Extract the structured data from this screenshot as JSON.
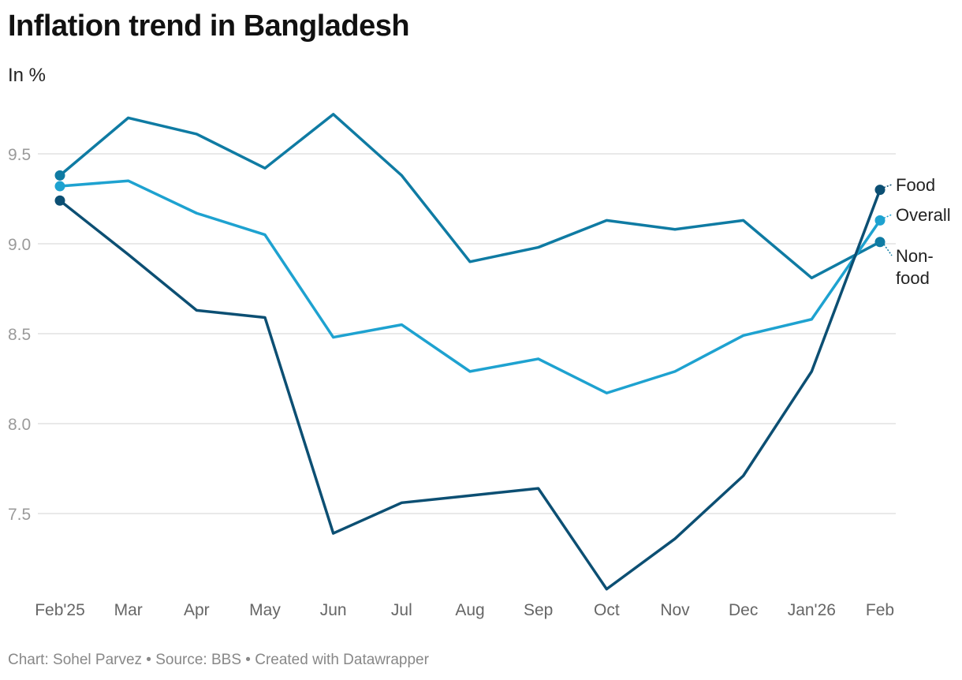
{
  "chart_data": {
    "type": "line",
    "title": "Inflation trend in Bangladesh",
    "subtitle": "In %",
    "xlabel": "",
    "ylabel": "In %",
    "categories": [
      "Feb'25",
      "Mar",
      "Apr",
      "May",
      "Jun",
      "Jul",
      "Aug",
      "Sep",
      "Oct",
      "Nov",
      "Dec",
      "Jan'26",
      "Feb"
    ],
    "yticks": [
      7.5,
      8.0,
      8.5,
      9.0,
      9.5
    ],
    "ytick_labels": [
      "7.5",
      "8.0",
      "8.5",
      "9.0",
      "9.5"
    ],
    "ylim": [
      7.0,
      9.8
    ],
    "grid": true,
    "legend": "inline-right",
    "series": [
      {
        "name": "Non-food",
        "label_lines": [
          "Non-",
          "food"
        ],
        "color": "#0f7ba3",
        "values": [
          9.38,
          9.7,
          9.61,
          9.42,
          9.72,
          9.38,
          8.9,
          8.98,
          9.13,
          9.08,
          9.13,
          8.81,
          9.01
        ]
      },
      {
        "name": "Overall",
        "label_lines": [
          "Overall"
        ],
        "color": "#1ea2d0",
        "values": [
          9.32,
          9.35,
          9.17,
          9.05,
          8.48,
          8.55,
          8.29,
          8.36,
          8.17,
          8.29,
          8.49,
          8.58,
          9.13
        ]
      },
      {
        "name": "Food",
        "label_lines": [
          "Food"
        ],
        "color": "#0c4f73",
        "values": [
          9.24,
          8.94,
          8.63,
          8.59,
          7.39,
          7.56,
          7.6,
          7.64,
          7.08,
          7.36,
          7.71,
          8.29,
          9.3
        ]
      }
    ]
  },
  "footer": "Chart: Sohel Parvez • Source: BBS • Created with Datawrapper"
}
